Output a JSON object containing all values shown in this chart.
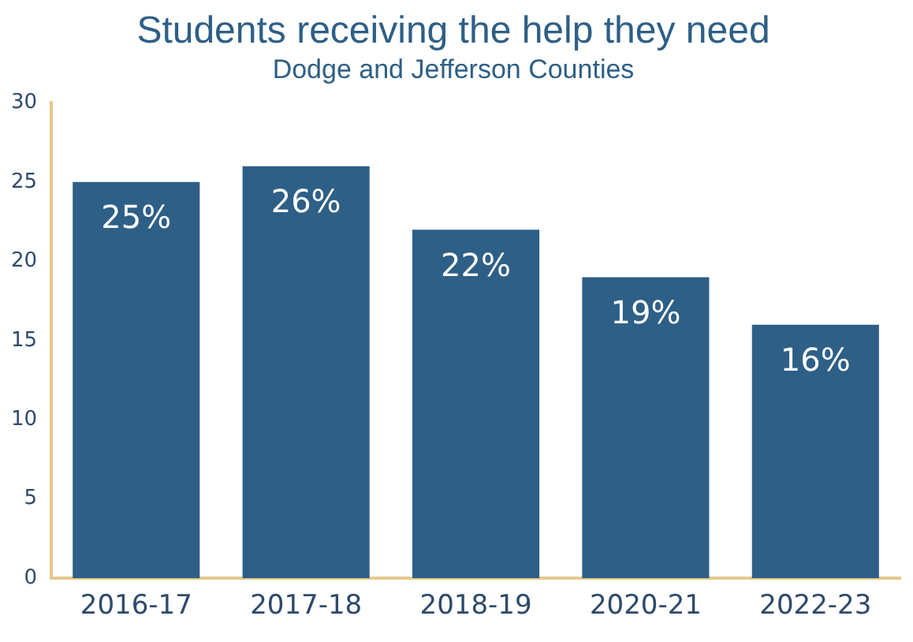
{
  "chart_data": {
    "type": "bar",
    "title": "Students receiving the help they need",
    "subtitle": "Dodge and Jefferson Counties",
    "categories": [
      "2016-17",
      "2017-18",
      "2018-19",
      "2020-21",
      "2022-23"
    ],
    "values": [
      25,
      26,
      22,
      19,
      16
    ],
    "value_labels": [
      "25%",
      "26%",
      "22%",
      "19%",
      "16%"
    ],
    "color": "#2e5f86",
    "ylim": [
      0,
      30
    ],
    "yticks": [
      0,
      5,
      10,
      15,
      20,
      25,
      30
    ],
    "grid": false,
    "legend": false
  }
}
